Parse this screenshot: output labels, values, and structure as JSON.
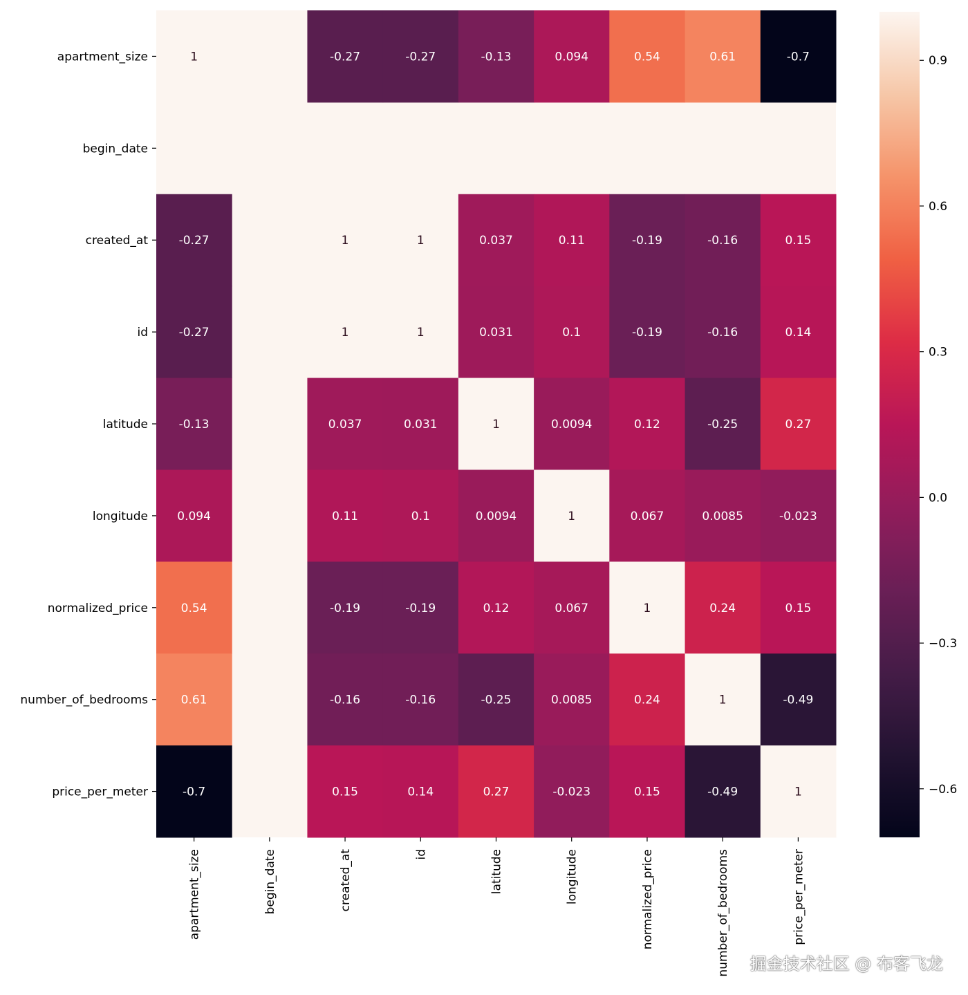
{
  "chart_data": {
    "type": "heatmap",
    "title": "",
    "xlabel": "",
    "ylabel": "",
    "x_categories": [
      "apartment_size",
      "begin_date",
      "created_at",
      "id",
      "latitude",
      "longitude",
      "normalized_price",
      "number_of_bedrooms",
      "price_per_meter"
    ],
    "y_categories": [
      "apartment_size",
      "begin_date",
      "created_at",
      "id",
      "latitude",
      "longitude",
      "normalized_price",
      "number_of_bedrooms",
      "price_per_meter"
    ],
    "values": [
      [
        1,
        null,
        -0.27,
        -0.27,
        -0.13,
        0.094,
        0.54,
        0.61,
        -0.7
      ],
      [
        null,
        null,
        null,
        null,
        null,
        null,
        null,
        null,
        null
      ],
      [
        -0.27,
        null,
        1,
        1,
        0.037,
        0.11,
        -0.19,
        -0.16,
        0.15
      ],
      [
        -0.27,
        null,
        1,
        1,
        0.031,
        0.1,
        -0.19,
        -0.16,
        0.14
      ],
      [
        -0.13,
        null,
        0.037,
        0.031,
        1,
        0.0094,
        0.12,
        -0.25,
        0.27
      ],
      [
        0.094,
        null,
        0.11,
        0.1,
        0.0094,
        1,
        0.067,
        0.0085,
        -0.023
      ],
      [
        0.54,
        null,
        -0.19,
        -0.19,
        0.12,
        0.067,
        1,
        0.24,
        0.15
      ],
      [
        0.61,
        null,
        -0.16,
        -0.16,
        -0.25,
        0.0085,
        0.24,
        1,
        -0.49
      ],
      [
        -0.7,
        null,
        0.15,
        0.14,
        0.27,
        -0.023,
        0.15,
        -0.49,
        1
      ]
    ],
    "annotated": true,
    "colormap": "rocket",
    "colorbar": {
      "range": [
        -0.7,
        1.0
      ],
      "ticks": [
        0.9,
        0.6,
        0.3,
        0.0,
        -0.3,
        -0.6
      ],
      "tick_labels": [
        "0.9",
        "0.6",
        "0.3",
        "0.0",
        "−0.3",
        "−0.6"
      ],
      "placement": "right"
    },
    "missing_color": "#fcf5f0",
    "grid": false
  },
  "watermark": "掘金技术社区 @ 布客飞龙"
}
